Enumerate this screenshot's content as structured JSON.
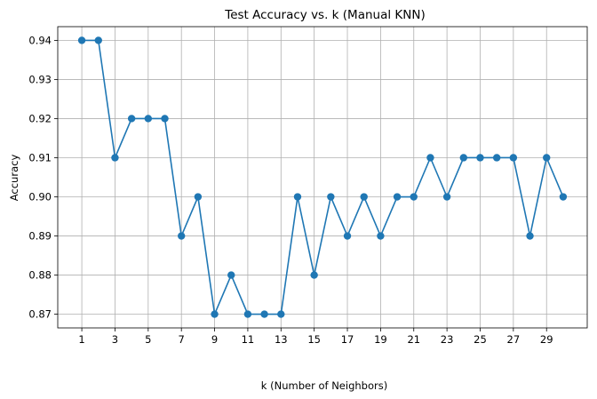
{
  "chart_data": {
    "type": "line",
    "title": "Test Accuracy vs. k (Manual KNN)",
    "xlabel": "k (Number of Neighbors)",
    "ylabel": "Accuracy",
    "x": [
      1,
      2,
      3,
      4,
      5,
      6,
      7,
      8,
      9,
      10,
      11,
      12,
      13,
      14,
      15,
      16,
      17,
      18,
      19,
      20,
      21,
      22,
      23,
      24,
      25,
      26,
      27,
      28,
      29,
      30
    ],
    "values": [
      0.94,
      0.94,
      0.91,
      0.92,
      0.92,
      0.92,
      0.89,
      0.9,
      0.87,
      0.88,
      0.87,
      0.87,
      0.87,
      0.9,
      0.88,
      0.9,
      0.89,
      0.9,
      0.89,
      0.9,
      0.9,
      0.91,
      0.9,
      0.91,
      0.91,
      0.91,
      0.91,
      0.89,
      0.91,
      0.9
    ],
    "xticks": [
      1,
      3,
      5,
      7,
      9,
      11,
      13,
      15,
      17,
      19,
      21,
      23,
      25,
      27,
      29
    ],
    "xtick_labels": [
      "1",
      "3",
      "5",
      "7",
      "9",
      "11",
      "13",
      "15",
      "17",
      "19",
      "21",
      "23",
      "25",
      "27",
      "29"
    ],
    "yticks": [
      0.87,
      0.88,
      0.89,
      0.9,
      0.91,
      0.92,
      0.93,
      0.94
    ],
    "ytick_labels": [
      "0.87",
      "0.88",
      "0.89",
      "0.90",
      "0.91",
      "0.92",
      "0.93",
      "0.94"
    ],
    "xlim": [
      -0.45,
      31.45
    ],
    "ylim": [
      0.8665,
      0.9435
    ],
    "grid": true,
    "marker": "circle",
    "color": "#1f77b4"
  }
}
